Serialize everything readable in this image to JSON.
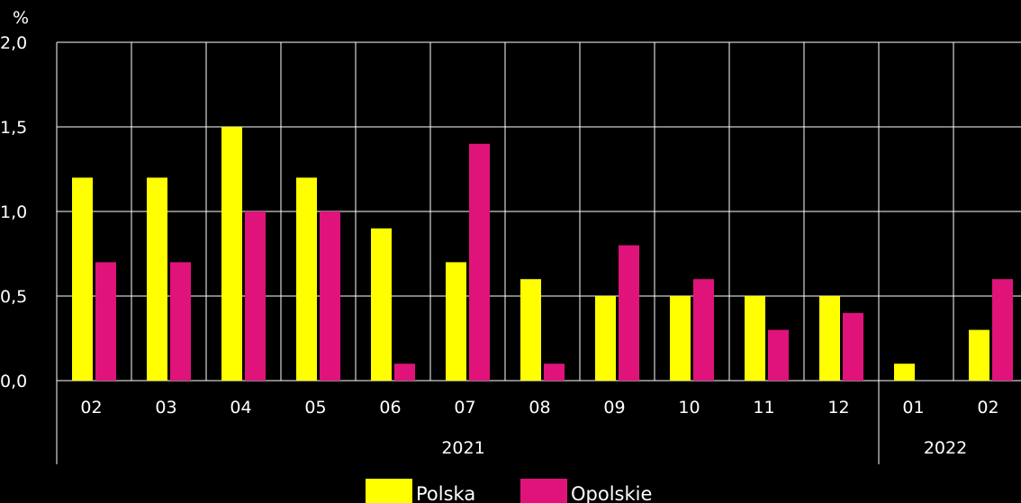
{
  "chart_data": {
    "type": "bar",
    "title": "",
    "xlabel": "",
    "ylabel": "%",
    "ylim": [
      0,
      2
    ],
    "yticks": [
      "0,0",
      "0,5",
      "1,0",
      "1,5",
      "2,0"
    ],
    "ytick_values": [
      0,
      0.5,
      1,
      1.5,
      2
    ],
    "grid": true,
    "legend_position": "bottom",
    "categories": [
      "02",
      "03",
      "04",
      "05",
      "06",
      "07",
      "08",
      "09",
      "10",
      "11",
      "12",
      "01",
      "02"
    ],
    "year_groups": [
      {
        "label": "2021",
        "count": 11
      },
      {
        "label": "2022",
        "count": 2
      }
    ],
    "series": [
      {
        "name": "Polska",
        "color": "#ffff00",
        "values": [
          1.2,
          1.2,
          1.5,
          1.2,
          0.9,
          0.7,
          0.6,
          0.5,
          0.5,
          0.5,
          0.5,
          0.1,
          0.3
        ]
      },
      {
        "name": "Opolskie",
        "color": "#e0137a",
        "values": [
          0.7,
          0.7,
          1.0,
          1.0,
          0.1,
          1.4,
          0.1,
          0.8,
          0.6,
          0.3,
          0.4,
          0.0,
          0.6
        ]
      }
    ]
  }
}
